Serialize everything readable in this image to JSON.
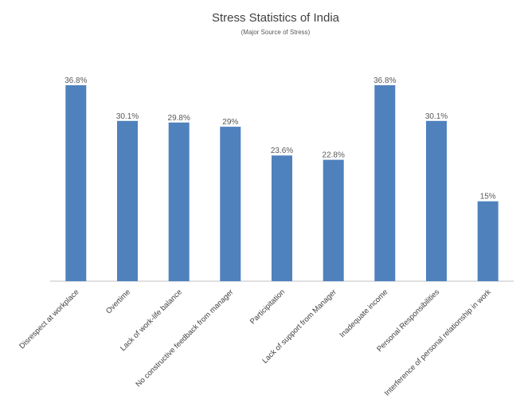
{
  "chart_data": {
    "type": "bar",
    "title": "Stress Statistics of India",
    "subtitle": "(Major Source of Stress)",
    "categories": [
      "Disrespect at workplace",
      "Overtime",
      "Lack of work-life balance",
      "No constructive feedback from manager",
      "Participitation",
      "Lack of support from Manager",
      "Inadequate income",
      "Personal Responsibilities",
      "Interference of personal relationship in work"
    ],
    "values": [
      36.8,
      30.1,
      29.8,
      29,
      23.6,
      22.8,
      36.8,
      30.1,
      15
    ],
    "data_labels": [
      "36.8%",
      "30.1%",
      "29.8%",
      "29%",
      "23.6%",
      "22.8%",
      "36.8%",
      "30.1%",
      "15%"
    ],
    "ylim": [
      0,
      38
    ],
    "grid": false,
    "legend": "none",
    "colors": {
      "bar": "#4f81bd",
      "axis": "#bfbfbf",
      "text": "#404040"
    }
  }
}
